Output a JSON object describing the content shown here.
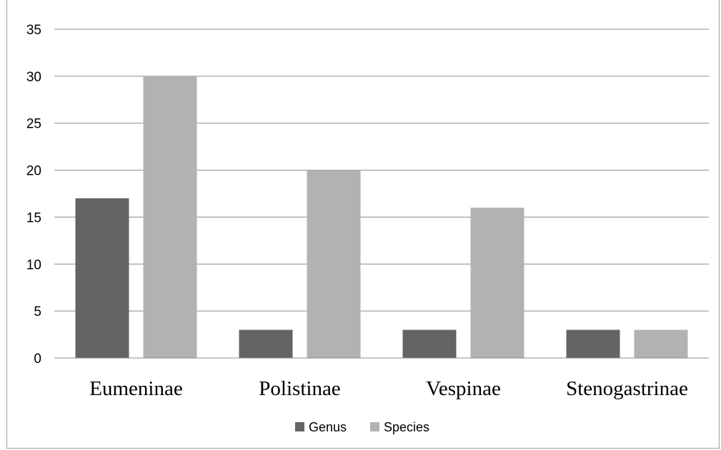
{
  "chart_data": {
    "type": "bar",
    "categories": [
      "Eumeninae",
      "Polistinae",
      "Vespinae",
      "Stenogastrinae"
    ],
    "series": [
      {
        "name": "Genus",
        "values": [
          17,
          3,
          3,
          3
        ],
        "color": "#646464"
      },
      {
        "name": "Species",
        "values": [
          30,
          20,
          16,
          3
        ],
        "color": "#b2b2b2"
      }
    ],
    "ylim": [
      0,
      35
    ],
    "yticks": [
      0,
      5,
      10,
      15,
      20,
      25,
      30,
      35
    ],
    "grid": true,
    "legend_position": "bottom"
  }
}
